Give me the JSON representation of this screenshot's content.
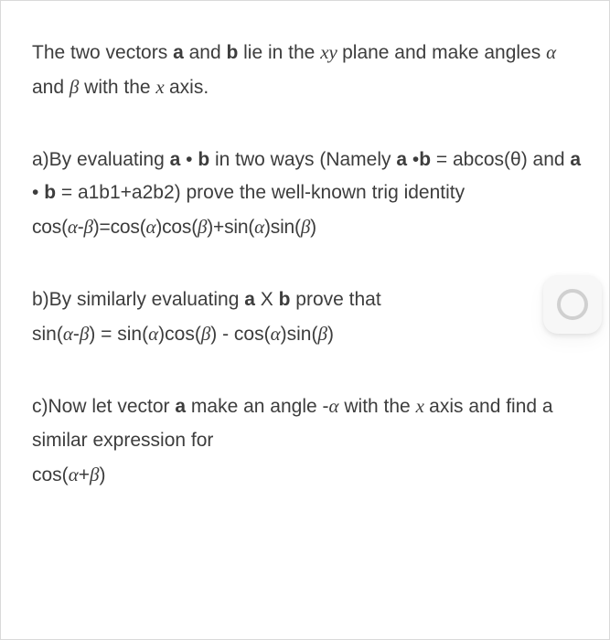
{
  "colors": {
    "background": "#ffffff",
    "text": "#3d3d3d",
    "border": "#d9d9d9",
    "button_bg": "#f7f7f7",
    "button_ring": "#d0d0d0"
  },
  "font": {
    "family": "Segoe UI / Helvetica Neue",
    "size_pt": 16,
    "line_height": 1.75
  },
  "intro": {
    "t1": "The two vectors ",
    "a": "a",
    "t2": " and ",
    "b": "b",
    "t3": " lie in the ",
    "xy": "xy ",
    "t4": "plane and make angles ",
    "alpha": "α",
    "t5": " and ",
    "beta": "β",
    "t6": " with the ",
    "x": "x ",
    "t7": "axis."
  },
  "part_a": {
    "l1a": "a)By evaluating ",
    "a1": "a",
    "dot1": " • ",
    "b1": "b",
    "l1b": " in two ways (Namely ",
    "a2": "a",
    "dot2": " •",
    "b2": "b",
    "eq1": " = abcos(θ) and ",
    "a3": "a",
    "dot3": " • ",
    "b3": "b",
    "eq2": " = a1b1+a2b2) prove the well-known trig identity",
    "formula_p1": "cos(",
    "formula_alpha1": "α",
    "formula_m1": "-",
    "formula_beta1": "β",
    "formula_p2": ")=cos(",
    "formula_alpha2": "α",
    "formula_p3": ")cos(",
    "formula_beta2": "β",
    "formula_p4": ")+sin(",
    "formula_alpha3": "α",
    "formula_p5": ")sin(",
    "formula_beta3": "β",
    "formula_p6": ")"
  },
  "part_b": {
    "l1a": "b)By similarly evaluating ",
    "a": "a",
    "x": " X ",
    "b": "b",
    "l1b": " prove that",
    "f1": "sin(",
    "alpha1": "α",
    "m1": "-",
    "beta1": "β",
    "f2": ") = sin(",
    "alpha2": "α",
    "f3": ")cos(",
    "beta2": "β",
    "f4": ") - cos(",
    "alpha3": "α",
    "f5": ")sin(",
    "beta3": "β",
    "f6": ")"
  },
  "part_c": {
    "l1a": "c)Now let vector ",
    "a": "a",
    "l1b": " make an angle -",
    "alpha": "α",
    "l1c": " with the ",
    "x": "x ",
    "l1d": "axis and find a similar expression for",
    "f1": "cos(",
    "alpha2": "α",
    "plus": "+",
    "beta": "β",
    "f2": ")"
  }
}
